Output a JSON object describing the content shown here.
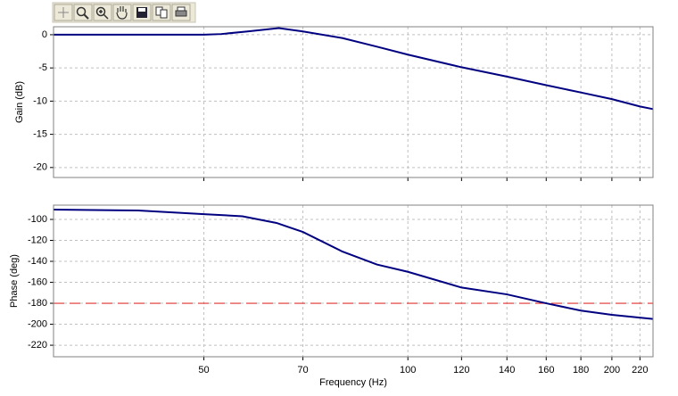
{
  "chart_data": [
    {
      "type": "line",
      "ylabel": "Gain (dB)",
      "xscale": "log",
      "grid": true,
      "show_xtick_labels": false,
      "x": [
        30,
        40,
        50,
        53,
        58,
        64.5,
        70,
        80,
        90,
        100,
        120,
        140,
        160,
        180,
        200,
        220,
        230
      ],
      "series": [
        {
          "color": "#000080",
          "values": [
            0,
            0,
            0,
            0.1,
            0.5,
            1,
            0.5,
            -0.5,
            -1.8,
            -3,
            -4.9,
            -6.3,
            -7.6,
            -8.7,
            -9.7,
            -10.8,
            -11.2
          ]
        }
      ],
      "xlim": [
        30,
        230
      ],
      "xticks": [
        50,
        70,
        100,
        120,
        140,
        160,
        180,
        200,
        220
      ],
      "ylim": [
        -21.5,
        1.2
      ],
      "yticks": [
        0,
        -5,
        -10,
        -15,
        -20
      ]
    },
    {
      "type": "line",
      "ylabel": "Phase (deg)",
      "xlabel": "Frequency (Hz)",
      "xscale": "log",
      "grid": true,
      "show_xtick_labels": true,
      "x": [
        30,
        40,
        50,
        57,
        64,
        70,
        80,
        90,
        100,
        120,
        140,
        160,
        180,
        200,
        230
      ],
      "series": [
        {
          "color": "#000080",
          "values": [
            -90.7,
            -91.5,
            -95,
            -97,
            -103.4,
            -112,
            -130.6,
            -143,
            -150,
            -165,
            -171.5,
            -180,
            -187,
            -191,
            -195
          ]
        }
      ],
      "hline": {
        "value": -180,
        "color": "#e03030"
      },
      "xlim": [
        30,
        230
      ],
      "xticks": [
        50,
        70,
        100,
        120,
        140,
        160,
        180,
        200,
        220
      ],
      "ylim": [
        -231,
        -86.4
      ],
      "yticks": [
        -100,
        -120,
        -140,
        -160,
        -180,
        -200,
        -220
      ]
    }
  ]
}
